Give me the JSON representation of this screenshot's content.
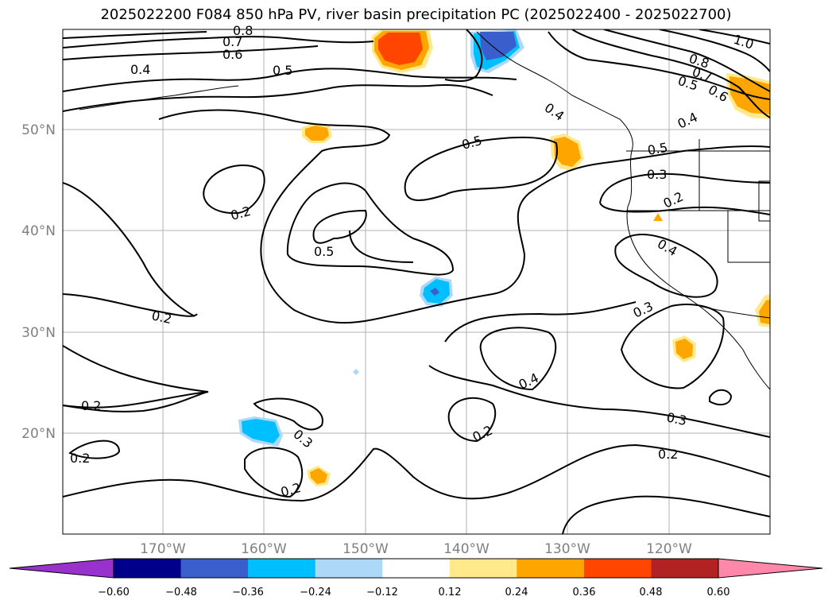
{
  "title": "2025022200 F084 850 hPa PV, river basin precipitation PC (2025022400 - 2025022700)",
  "lat_labels": [
    "50°N",
    "40°N",
    "30°N",
    "20°N"
  ],
  "lon_labels": [
    "170°W",
    "160°W",
    "150°W",
    "140°W",
    "130°W",
    "120°W"
  ],
  "contour_labels": [
    "0.8",
    "0.7",
    "0.6",
    "0.4",
    "0.5",
    "1.0",
    "0.8",
    "0.7",
    "0.5",
    "0.6",
    "0.4",
    "0.4",
    "0.5",
    "0.5",
    "0.3",
    "0.2",
    "0.2",
    "0.5",
    "0.4",
    "0.2",
    "0.3",
    "0.4",
    "0.2",
    "0.3",
    "0.3",
    "0.2",
    "0.2",
    "0.2",
    "0.2"
  ],
  "colorbar": {
    "ticks": [
      "−0.60",
      "−0.48",
      "−0.36",
      "−0.24",
      "−0.12",
      "0.12",
      "0.24",
      "0.36",
      "0.48",
      "0.60"
    ],
    "colors": [
      "#9932cc",
      "#00008b",
      "#3a5fcd",
      "#00bfff",
      "#add8f7",
      "#ffffff",
      "#ffe98a",
      "#ffa500",
      "#ff4500",
      "#b22222",
      "#ff88aa"
    ]
  }
}
